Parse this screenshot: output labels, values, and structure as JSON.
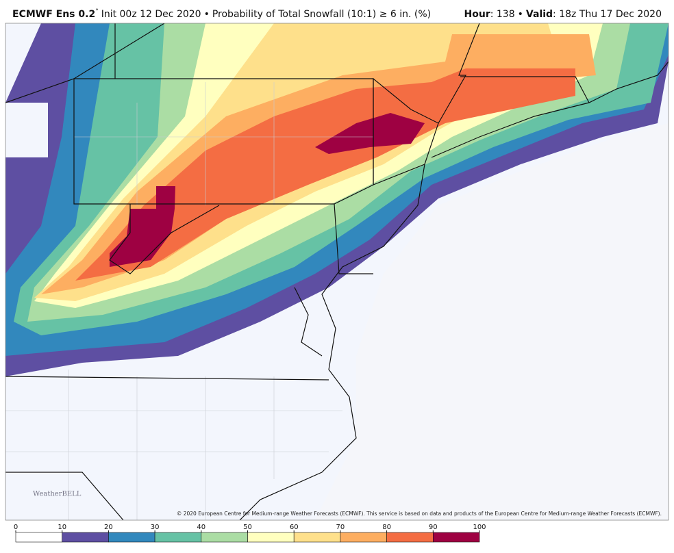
{
  "header": {
    "model": "ECMWF Ens 0.2",
    "degree": "°",
    "init": "Init 00z 12 Dec 2020",
    "separator": "•",
    "product": "Probability of Total Snowfall (10:1) ≥ 6 in. (%)",
    "hour_label": "Hour",
    "hour": ": 138",
    "valid_label": "Valid",
    "valid": ": 18z Thu 17 Dec 2020"
  },
  "logo": {
    "name": "WeatherBELL"
  },
  "copyright": "© 2020 European Centre for Medium-range Weather Forecasts (ECMWF). This service is based on data and products of the European Centre for Medium-range Weather Forecasts (ECMWF).",
  "colorbar": {
    "ticks": [
      0,
      10,
      20,
      30,
      40,
      50,
      60,
      70,
      80,
      90,
      100
    ],
    "colors": [
      "#ffffff",
      "#5e4fa2",
      "#3288bd",
      "#66c2a5",
      "#abdda4",
      "#ffffbf",
      "#fee08b",
      "#fdae61",
      "#f46d43",
      "#9e0142"
    ]
  }
}
